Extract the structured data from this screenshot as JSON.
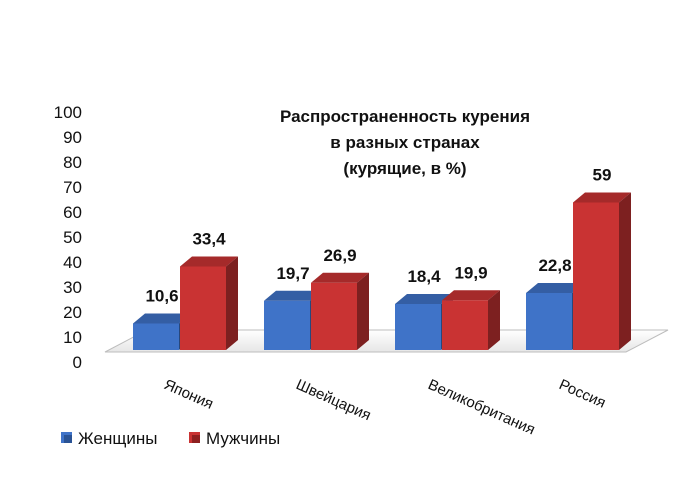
{
  "chart_data": {
    "type": "bar",
    "title_lines": [
      "Распространенность курения",
      "в разных странах",
      "(курящие, в %)"
    ],
    "categories": [
      "Япония",
      "Швейцария",
      "Великобритания",
      "Россия"
    ],
    "series": [
      {
        "name": "Женщины",
        "values": [
          10.6,
          19.7,
          18.4,
          22.8
        ],
        "labels": [
          "10,6",
          "19,7",
          "18,4",
          "22,8"
        ],
        "color": "#3f73c8"
      },
      {
        "name": "Мужчины",
        "values": [
          33.4,
          26.9,
          19.9,
          59
        ],
        "labels": [
          "33,4",
          "26,9",
          "19,9",
          "59"
        ],
        "color": "#c93333"
      }
    ],
    "yticks": [
      "0",
      "10",
      "20",
      "30",
      "40",
      "50",
      "60",
      "70",
      "80",
      "90",
      "100"
    ],
    "ylim": [
      0,
      100
    ],
    "legend_position": "bottom-left",
    "grid": false,
    "style": "3d-clustered"
  }
}
